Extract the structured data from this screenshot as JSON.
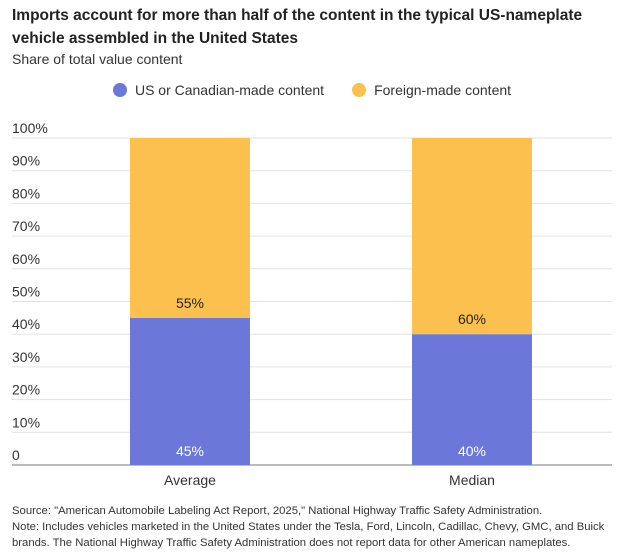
{
  "chart_data": {
    "type": "bar",
    "stacked": true,
    "title": "Imports account for more than half of the content in the typical US-nameplate vehicle assembled in the United States",
    "subtitle": "Share of total value content",
    "categories": [
      "Average",
      "Median"
    ],
    "series": [
      {
        "name": "US or Canadian-made content",
        "values": [
          45,
          40
        ],
        "color": "#6b77d9",
        "labels": [
          "45%",
          "40%"
        ]
      },
      {
        "name": "Foreign-made content",
        "values": [
          55,
          60
        ],
        "color": "#fcc04f",
        "labels": [
          "55%",
          "60%"
        ]
      }
    ],
    "ylim": [
      0,
      100
    ],
    "yticks": [
      0,
      10,
      20,
      30,
      40,
      50,
      60,
      70,
      80,
      90,
      100
    ],
    "ytick_labels": [
      "0",
      "10%",
      "20%",
      "30%",
      "40%",
      "50%",
      "60%",
      "70%",
      "80%",
      "90%",
      "100%"
    ],
    "grid": true,
    "legend_position": "top"
  },
  "footer": {
    "source": "Source: \"American Automobile Labeling Act Report, 2025,\" National Highway Traffic Safety Administration.",
    "note": "Note: Includes vehicles marketed in the United States under the Tesla, Ford, Lincoln, Cadillac, Chevy, GMC, and Buick brands. The National Highway Traffic Safety Administration does not report data for other American nameplates."
  }
}
